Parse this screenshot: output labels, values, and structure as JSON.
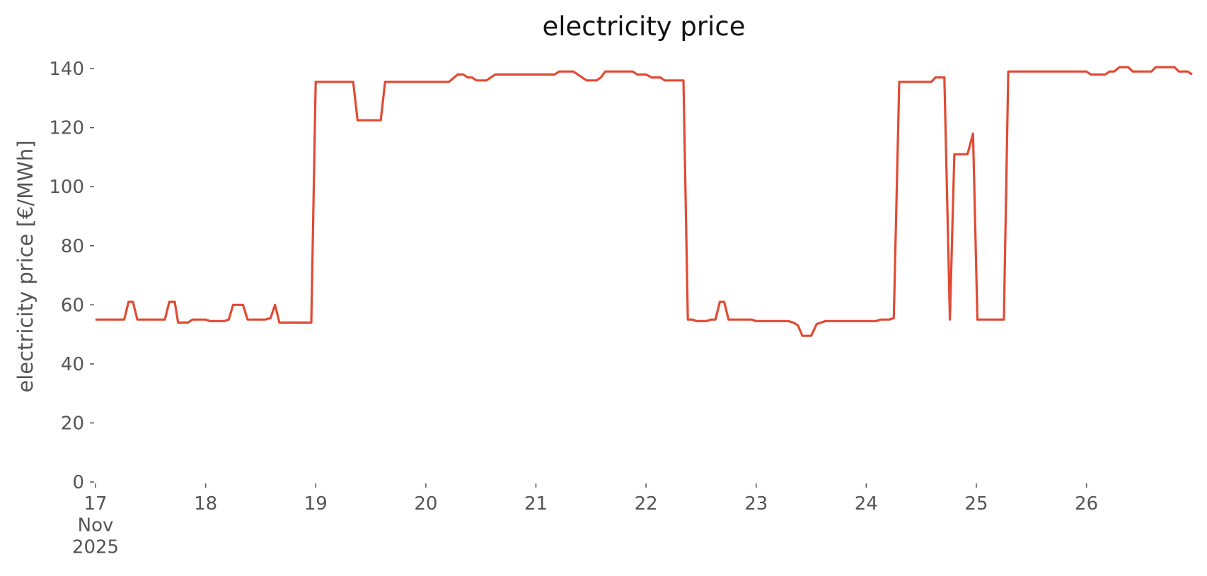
{
  "chart_data": {
    "type": "line",
    "title": "electricity price",
    "ylabel": "electricity price [€/MWh]",
    "color": "#e24a33",
    "x": [
      17,
      17.26,
      17.3,
      17.34,
      17.38,
      17.63,
      17.67,
      17.72,
      17.75,
      17.84,
      17.88,
      18.0,
      18.04,
      18.17,
      18.21,
      18.25,
      18.34,
      18.38,
      18.54,
      18.59,
      18.63,
      18.67,
      18.96,
      19.0,
      19.34,
      19.38,
      19.59,
      19.63,
      20.21,
      20.29,
      20.34,
      20.38,
      20.42,
      20.46,
      20.55,
      20.63,
      21.17,
      21.21,
      21.34,
      21.46,
      21.55,
      21.59,
      21.63,
      21.88,
      21.92,
      22.0,
      22.05,
      22.13,
      22.17,
      22.34,
      22.38,
      22.42,
      22.46,
      22.55,
      22.59,
      22.63,
      22.67,
      22.71,
      22.75,
      22.96,
      23.0,
      23.29,
      23.34,
      23.38,
      23.42,
      23.5,
      23.55,
      23.63,
      24.09,
      24.13,
      24.21,
      24.25,
      24.3,
      24.59,
      24.63,
      24.71,
      24.76,
      24.8,
      24.92,
      24.97,
      25.01,
      25.25,
      25.29,
      26.0,
      26.04,
      26.17,
      26.21,
      26.25,
      26.3,
      26.38,
      26.42,
      26.59,
      26.63,
      26.8,
      26.84,
      26.92,
      26.96
    ],
    "values": [
      55,
      55,
      61,
      61,
      55,
      55,
      61,
      61,
      54,
      54,
      55,
      55,
      54.5,
      54.5,
      55,
      60,
      60,
      55,
      55,
      55.5,
      60,
      54,
      54,
      135.5,
      135.5,
      122.5,
      122.5,
      135.5,
      135.5,
      138,
      138,
      137,
      137,
      136,
      136,
      138,
      138,
      139,
      139,
      136,
      136,
      137,
      139,
      139,
      138,
      138,
      137,
      137,
      136,
      136,
      55,
      55,
      54.5,
      54.5,
      55,
      55,
      61,
      61,
      55,
      55,
      54.5,
      54.5,
      54,
      53,
      49.5,
      49.5,
      53.5,
      54.5,
      54.5,
      55,
      55,
      55.5,
      135.5,
      135.5,
      137,
      137,
      55,
      111,
      111,
      118,
      55,
      55,
      139,
      139,
      138,
      138,
      139,
      139,
      140.5,
      140.5,
      139,
      139,
      140.5,
      140.5,
      139,
      139,
      138
    ],
    "xlim": [
      17,
      26.96
    ],
    "xticks": [
      {
        "value": 17,
        "label": "17\nNov\n2025"
      },
      18,
      19,
      20,
      21,
      22,
      23,
      24,
      25,
      26
    ],
    "ylim": [
      0,
      146
    ],
    "yticks": [
      0,
      20,
      40,
      60,
      80,
      100,
      120,
      140
    ]
  }
}
